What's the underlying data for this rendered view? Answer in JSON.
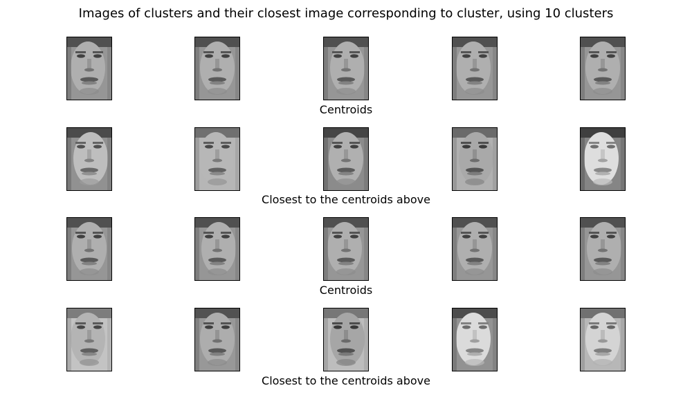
{
  "figure": {
    "title": "Images of clusters and their closest image corresponding to cluster, using 10 clusters"
  },
  "rows": [
    {
      "caption": "Centroids",
      "kind": "centroid",
      "tiles": [
        {
          "label": "centroid face"
        },
        {
          "label": "centroid face"
        },
        {
          "label": "centroid face"
        },
        {
          "label": "centroid face"
        },
        {
          "label": "centroid face"
        }
      ]
    },
    {
      "caption": "Closest to the centroids above",
      "kind": "closest",
      "tiles": [
        {
          "label": "closest face"
        },
        {
          "label": "closest face"
        },
        {
          "label": "closest face"
        },
        {
          "label": "closest face"
        },
        {
          "label": "closest face"
        }
      ]
    },
    {
      "caption": "Centroids",
      "kind": "centroid",
      "tiles": [
        {
          "label": "centroid face"
        },
        {
          "label": "centroid face"
        },
        {
          "label": "centroid face"
        },
        {
          "label": "centroid face"
        },
        {
          "label": "centroid face"
        }
      ]
    },
    {
      "caption": "Closest to the centroids above",
      "kind": "closest",
      "tiles": [
        {
          "label": "closest face"
        },
        {
          "label": "closest face"
        },
        {
          "label": "closest face"
        },
        {
          "label": "closest face"
        },
        {
          "label": "closest face"
        }
      ]
    }
  ],
  "colors": {
    "background": "#ffffff",
    "text": "#000000",
    "tile_border": "#000000"
  }
}
